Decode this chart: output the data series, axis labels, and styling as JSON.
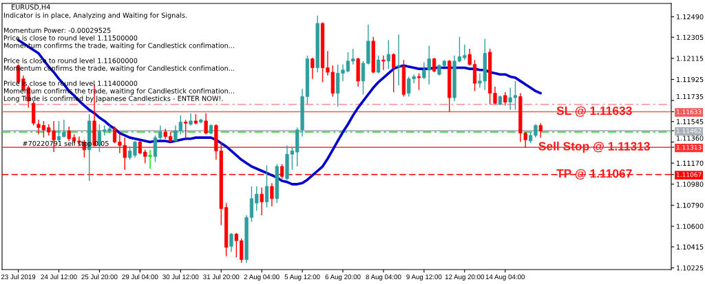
{
  "chart_data": {
    "type": "candlestick",
    "title": "EURUSD,H4",
    "subtitle": "Indicator is in place, Analyzing and Waiting for Signals.",
    "annotations": [
      "Momentum Power: -0.00029525",
      "Price is close to round level 1.11500000",
      "Momentum confirms the trade, waiting for Candlestick confimation...",
      "Price is close to round level 1.11600000",
      "Momentum confirms the trade, waiting for Candlestick confimation...",
      "Price is close to round level 1.11400000",
      "Momentum confirms the trade, waiting for Candlestick confimation...",
      "Long Trade is confirmed by Japanese Candlesticks - ENTER NOW!.",
      {
        "text": "#70220791 sell stop 0.05",
        "x": "23 Jul 2019",
        "y": 1.11313
      }
    ],
    "categories": [
      "23 Jul 2019",
      null,
      null,
      null,
      null,
      null,
      null,
      null,
      "24 Jul 12:00",
      null,
      null,
      null,
      null,
      null,
      null,
      null,
      "25 Jul 20:00",
      null,
      null,
      null,
      null,
      null,
      null,
      null,
      "29 Jul 04:00",
      null,
      null,
      null,
      null,
      null,
      null,
      null,
      "30 Jul 12:00",
      null,
      null,
      null,
      null,
      null,
      null,
      null,
      "31 Jul 20:00",
      null,
      null,
      null,
      null,
      null,
      null,
      null,
      "2 Aug 04:00",
      null,
      null,
      null,
      null,
      null,
      null,
      null,
      "5 Aug 12:00",
      null,
      null,
      null,
      null,
      null,
      null,
      null,
      "6 Aug 20:00",
      null,
      null,
      null,
      null,
      null,
      null,
      null,
      "8 Aug 04:00",
      null,
      null,
      null,
      null,
      null,
      null,
      null,
      "9 Aug 12:00",
      null,
      null,
      null,
      null,
      null,
      null,
      null,
      "12 Aug 20:00",
      null,
      null,
      null,
      null,
      null,
      null,
      null,
      "14 Aug 04:00",
      null,
      null,
      null,
      null,
      null,
      null,
      null
    ],
    "series": [
      {
        "type": "candlestick",
        "ohlc": [
          [
            1.1205,
            1.1206,
            1.1189,
            1.119
          ],
          [
            1.1193,
            1.1196,
            1.1182,
            1.1183
          ],
          [
            1.1185,
            1.1187,
            1.1167,
            1.1173
          ],
          [
            1.1171,
            1.1173,
            1.1151,
            1.1153
          ],
          [
            1.1152,
            1.1156,
            1.1143,
            1.1149
          ],
          [
            1.1151,
            1.1155,
            1.114,
            1.1147
          ],
          [
            1.1149,
            1.1152,
            1.1142,
            1.1145
          ],
          [
            1.1146,
            1.1155,
            1.1127,
            1.1138
          ],
          [
            1.1138,
            1.1155,
            1.1136,
            1.1141
          ],
          [
            1.1141,
            1.1156,
            1.114,
            1.1145
          ],
          [
            1.1146,
            1.115,
            1.1137,
            1.1139
          ],
          [
            1.114,
            1.1143,
            1.1135,
            1.1137
          ],
          [
            1.1137,
            1.1141,
            1.1133,
            1.1136
          ],
          [
            1.1136,
            1.1138,
            1.1122,
            1.1129
          ],
          [
            1.1129,
            1.1161,
            1.1101,
            1.1155
          ],
          [
            1.1155,
            1.1188,
            1.1132,
            1.1133
          ],
          [
            1.1133,
            1.1152,
            1.1127,
            1.1146
          ],
          [
            1.1146,
            1.1151,
            1.1142,
            1.1147
          ],
          [
            1.1146,
            1.1151,
            1.1144,
            1.1148
          ],
          [
            1.1148,
            1.115,
            1.1135,
            1.1136
          ],
          [
            1.1136,
            1.1144,
            1.1126,
            1.1133
          ],
          [
            1.1133,
            1.114,
            1.1111,
            1.1122
          ],
          [
            1.1122,
            1.1132,
            1.112,
            1.1128
          ],
          [
            1.1124,
            1.1137,
            1.1122,
            1.1136
          ],
          [
            1.1136,
            1.1137,
            1.1125,
            1.1126
          ],
          [
            1.1127,
            1.1129,
            1.1117,
            1.1123
          ],
          [
            1.1123,
            1.1129,
            1.1112,
            1.1124
          ],
          [
            1.1123,
            1.1142,
            1.1118,
            1.114
          ],
          [
            1.114,
            1.1151,
            1.1138,
            1.1145
          ],
          [
            1.1145,
            1.1148,
            1.1139,
            1.1141
          ],
          [
            1.1141,
            1.1145,
            1.1136,
            1.1137
          ],
          [
            1.1137,
            1.1151,
            1.1136,
            1.1146
          ],
          [
            1.1146,
            1.116,
            1.1143,
            1.1154
          ],
          [
            1.1154,
            1.1156,
            1.1139,
            1.1153
          ],
          [
            1.1152,
            1.1162,
            1.1151,
            1.1155
          ],
          [
            1.1155,
            1.1161,
            1.1152,
            1.1153
          ],
          [
            1.1154,
            1.1157,
            1.1153,
            1.1156
          ],
          [
            1.1155,
            1.1162,
            1.1143,
            1.1144
          ],
          [
            1.1144,
            1.1152,
            1.1143,
            1.1151
          ],
          [
            1.1151,
            1.1152,
            1.112,
            1.1128
          ],
          [
            1.1128,
            1.1136,
            1.1061,
            1.1076
          ],
          [
            1.1077,
            1.1081,
            1.1033,
            1.1041
          ],
          [
            1.1042,
            1.1054,
            1.1037,
            1.1053
          ],
          [
            1.1053,
            1.1054,
            1.1032,
            1.1047
          ],
          [
            1.1047,
            1.1049,
            1.1027,
            1.103
          ],
          [
            1.103,
            1.107,
            1.1027,
            1.1068
          ],
          [
            1.1068,
            1.1096,
            1.1064,
            1.1085
          ],
          [
            1.1081,
            1.1096,
            1.1074,
            1.1089
          ],
          [
            1.1089,
            1.1095,
            1.107,
            1.1082
          ],
          [
            1.1082,
            1.1115,
            1.1077,
            1.1096
          ],
          [
            1.1096,
            1.1099,
            1.1078,
            1.1085
          ],
          [
            1.1085,
            1.1116,
            1.1081,
            1.1114
          ],
          [
            1.1114,
            1.1116,
            1.1103,
            1.1105
          ],
          [
            1.1103,
            1.1133,
            1.1102,
            1.1125
          ],
          [
            1.1125,
            1.1132,
            1.1111,
            1.1128
          ],
          [
            1.1127,
            1.1149,
            1.1114,
            1.1147
          ],
          [
            1.1147,
            1.1184,
            1.1141,
            1.1177
          ],
          [
            1.1177,
            1.1214,
            1.117,
            1.1211
          ],
          [
            1.1211,
            1.1212,
            1.1193,
            1.1203
          ],
          [
            1.1203,
            1.125,
            1.1199,
            1.1243
          ],
          [
            1.1243,
            1.1244,
            1.119,
            1.1203
          ],
          [
            1.1203,
            1.1218,
            1.1196,
            1.1199
          ],
          [
            1.1199,
            1.1205,
            1.1177,
            1.118
          ],
          [
            1.118,
            1.1206,
            1.1168,
            1.1198
          ],
          [
            1.1198,
            1.1206,
            1.1191,
            1.1201
          ],
          [
            1.12,
            1.1217,
            1.1199,
            1.1209
          ],
          [
            1.1209,
            1.122,
            1.1206,
            1.1211
          ],
          [
            1.1211,
            1.1212,
            1.1186,
            1.1191
          ],
          [
            1.1191,
            1.1209,
            1.1179,
            1.1207
          ],
          [
            1.1207,
            1.1242,
            1.1206,
            1.1227
          ],
          [
            1.1227,
            1.1231,
            1.1198,
            1.1199
          ],
          [
            1.1199,
            1.1214,
            1.1198,
            1.121
          ],
          [
            1.121,
            1.1214,
            1.1201,
            1.1209
          ],
          [
            1.1209,
            1.1228,
            1.1202,
            1.1215
          ],
          [
            1.1215,
            1.1216,
            1.1181,
            1.1203
          ],
          [
            1.1204,
            1.1233,
            1.1187,
            1.1205
          ],
          [
            1.1204,
            1.121,
            1.1177,
            1.1179
          ],
          [
            1.118,
            1.1195,
            1.1177,
            1.1193
          ],
          [
            1.1193,
            1.1197,
            1.1189,
            1.1195
          ],
          [
            1.1195,
            1.1198,
            1.1183,
            1.1194
          ],
          [
            1.1194,
            1.1208,
            1.1193,
            1.1201
          ],
          [
            1.1201,
            1.1223,
            1.1188,
            1.1211
          ],
          [
            1.1211,
            1.1212,
            1.1199,
            1.12
          ],
          [
            1.1197,
            1.1206,
            1.1196,
            1.1205
          ],
          [
            1.1205,
            1.121,
            1.1204,
            1.1209
          ],
          [
            1.1209,
            1.121,
            1.1163,
            1.1176
          ],
          [
            1.1176,
            1.1214,
            1.1173,
            1.1209
          ],
          [
            1.1209,
            1.1231,
            1.1208,
            1.1213
          ],
          [
            1.1212,
            1.1224,
            1.121,
            1.1214
          ],
          [
            1.1215,
            1.122,
            1.1205,
            1.1206
          ],
          [
            1.1206,
            1.121,
            1.1182,
            1.1189
          ],
          [
            1.1189,
            1.1198,
            1.1185,
            1.1191
          ],
          [
            1.1191,
            1.1229,
            1.1183,
            1.1216
          ],
          [
            1.1217,
            1.122,
            1.117,
            1.118
          ],
          [
            1.118,
            1.1186,
            1.117,
            1.1171
          ],
          [
            1.117,
            1.1178,
            1.1169,
            1.1177
          ],
          [
            1.1178,
            1.1181,
            1.1169,
            1.1172
          ],
          [
            1.1172,
            1.1185,
            1.1165,
            1.1176
          ],
          [
            1.1176,
            1.1191,
            1.1165,
            1.1178
          ],
          [
            1.1177,
            1.118,
            1.1136,
            1.1144
          ],
          [
            1.1144,
            1.1145,
            1.1131,
            1.1138
          ],
          [
            1.1137,
            1.1145,
            1.1135,
            1.1142
          ],
          [
            1.1142,
            1.1152,
            1.114,
            1.1151
          ],
          [
            1.1151,
            1.1153,
            1.114,
            1.1146
          ]
        ],
        "colors": [
          "#ff0000",
          "#ff0000",
          "#ff0000",
          "#ff0000",
          "#ff0000",
          "#ff0000",
          "#ff0000",
          "#ff0000",
          "#2e9e9e",
          "#2e9e9e",
          "#ff0000",
          "#ff0000",
          "#ff0000",
          "#ff0000",
          "#2e9e9e",
          "#ff0000",
          "#2e9e9e",
          "#2e9e9e",
          "#2e9e9e",
          "#ff0000",
          "#ff0000",
          "#ff0000",
          "#2e9e9e",
          "#2e9e9e",
          "#ff0000",
          "#ff0000",
          "#00e000",
          "#2e9e9e",
          "#2e9e9e",
          "#ff0000",
          "#ff0000",
          "#2e9e9e",
          "#2e9e9e",
          "#ff0000",
          "#2e9e9e",
          "#ff0000",
          "#2e9e9e",
          "#ff0000",
          "#2e9e9e",
          "#ff0000",
          "#ff0000",
          "#ff0000",
          "#2e9e9e",
          "#ff0000",
          "#ff0000",
          "#2e9e9e",
          "#2e9e9e",
          "#2e9e9e",
          "#ff0000",
          "#2e9e9e",
          "#ff0000",
          "#2e9e9e",
          "#ff0000",
          "#2e9e9e",
          "#2e9e9e",
          "#2e9e9e",
          "#2e9e9e",
          "#2e9e9e",
          "#ff0000",
          "#2e9e9e",
          "#ff0000",
          "#ff0000",
          "#ff0000",
          "#2e9e9e",
          "#2e9e9e",
          "#2e9e9e",
          "#2e9e9e",
          "#ff0000",
          "#2e9e9e",
          "#2e9e9e",
          "#ff0000",
          "#2e9e9e",
          "#ff0000",
          "#2e9e9e",
          "#ff0000",
          "#2e9e9e",
          "#ff0000",
          "#2e9e9e",
          "#2e9e9e",
          "#ff0000",
          "#2e9e9e",
          "#2e9e9e",
          "#ff0000",
          "#2e9e9e",
          "#2e9e9e",
          "#ff0000",
          "#2e9e9e",
          "#2e9e9e",
          "#2e9e9e",
          "#ff0000",
          "#ff0000",
          "#2e9e9e",
          "#2e9e9e",
          "#ff0000",
          "#ff0000",
          "#2e9e9e",
          "#ff0000",
          "#2e9e9e",
          "#2e9e9e",
          "#ff0000",
          "#ff0000",
          "#2e9e9e",
          "#2e9e9e",
          "#ff0000"
        ]
      },
      {
        "type": "line",
        "color": "#0000cc",
        "values": [
          1.1228,
          1.1225,
          1.1222,
          1.1219,
          1.1216,
          1.121,
          1.1204,
          1.1199,
          1.1193,
          1.1188,
          1.1182,
          1.1178,
          1.1173,
          1.1169,
          1.1165,
          1.1162,
          1.1158,
          1.1155,
          1.1151,
          1.1148,
          1.1144,
          1.1142,
          1.114,
          1.1139,
          1.1138,
          1.1137,
          1.1136,
          1.1137,
          1.1137,
          1.1137,
          1.1136,
          1.1137,
          1.1138,
          1.1139,
          1.1139,
          1.114,
          1.114,
          1.114,
          1.114,
          1.1138,
          1.1135,
          1.1132,
          1.1128,
          1.1124,
          1.112,
          1.1117,
          1.1114,
          1.1112,
          1.111,
          1.1108,
          1.1106,
          1.1104,
          1.1101,
          1.11,
          1.1098,
          1.1098,
          1.1099,
          1.1102,
          1.1106,
          1.111,
          1.1114,
          1.1121,
          1.1129,
          1.1137,
          1.1145,
          1.1152,
          1.116,
          1.1167,
          1.1173,
          1.1179,
          1.1185,
          1.119,
          1.1194,
          1.1198,
          1.1202,
          1.1204,
          1.1205,
          1.1204,
          1.1203,
          1.1202,
          1.1202,
          1.1202,
          1.1203,
          1.1203,
          1.1203,
          1.1203,
          1.1203,
          1.1203,
          1.1203,
          1.1202,
          1.1202,
          1.1201,
          1.1201,
          1.1199,
          1.1198,
          1.1197,
          1.1197,
          1.1195,
          1.1194,
          1.1191,
          1.1188,
          1.1185,
          1.1182,
          1.118
        ]
      }
    ],
    "ref_lines": [
      {
        "axis": "y",
        "value": 1.117,
        "label": null,
        "color": "#ff8c8c",
        "line_style": "dashdot"
      },
      {
        "axis": "y",
        "value": 1.11633,
        "label": "SL @ 1.11633",
        "color": "#f25a5a",
        "line_style": "solid"
      },
      {
        "axis": "y",
        "value": 1.11462,
        "label": null,
        "color": "#a8b0b8",
        "line_style": "solid"
      },
      {
        "axis": "y",
        "value": 1.1145,
        "label": null,
        "color": "#22cc22",
        "line_style": "dashdot"
      },
      {
        "axis": "y",
        "value": 1.11313,
        "label": "Sell Stop @ 1.11313",
        "color": "#ff3030",
        "line_style": "solid"
      },
      {
        "axis": "y",
        "value": 1.11067,
        "label": "TP @ 1.11067",
        "color": "#ff0000",
        "line_style": "dashed"
      }
    ],
    "ylim": [
      1.1021,
      1.1261
    ],
    "yticks": [
      {
        "value": 1.1249,
        "label": "1.12490"
      },
      1.12305,
      1.12115,
      1.11925,
      1.11735,
      1.11545,
      {
        "value": 1.1136,
        "label": "1.11360"
      },
      {
        "value": 1.11633,
        "label": "1.11633"
      },
      {
        "value": 1.11462,
        "label": "1.11462"
      },
      {
        "value": 1.11313,
        "label": "1.11313"
      },
      {
        "value": 1.11067,
        "label": "1.11067"
      },
      {
        "value": 1.1117,
        "label": "1.11170"
      },
      {
        "value": 1.1098,
        "label": "1.10980"
      },
      {
        "value": 1.1079,
        "label": "1.10790"
      },
      {
        "value": 1.106,
        "label": "1.10600"
      },
      1.10415,
      1.10225
    ],
    "grid": false,
    "legend": false
  }
}
